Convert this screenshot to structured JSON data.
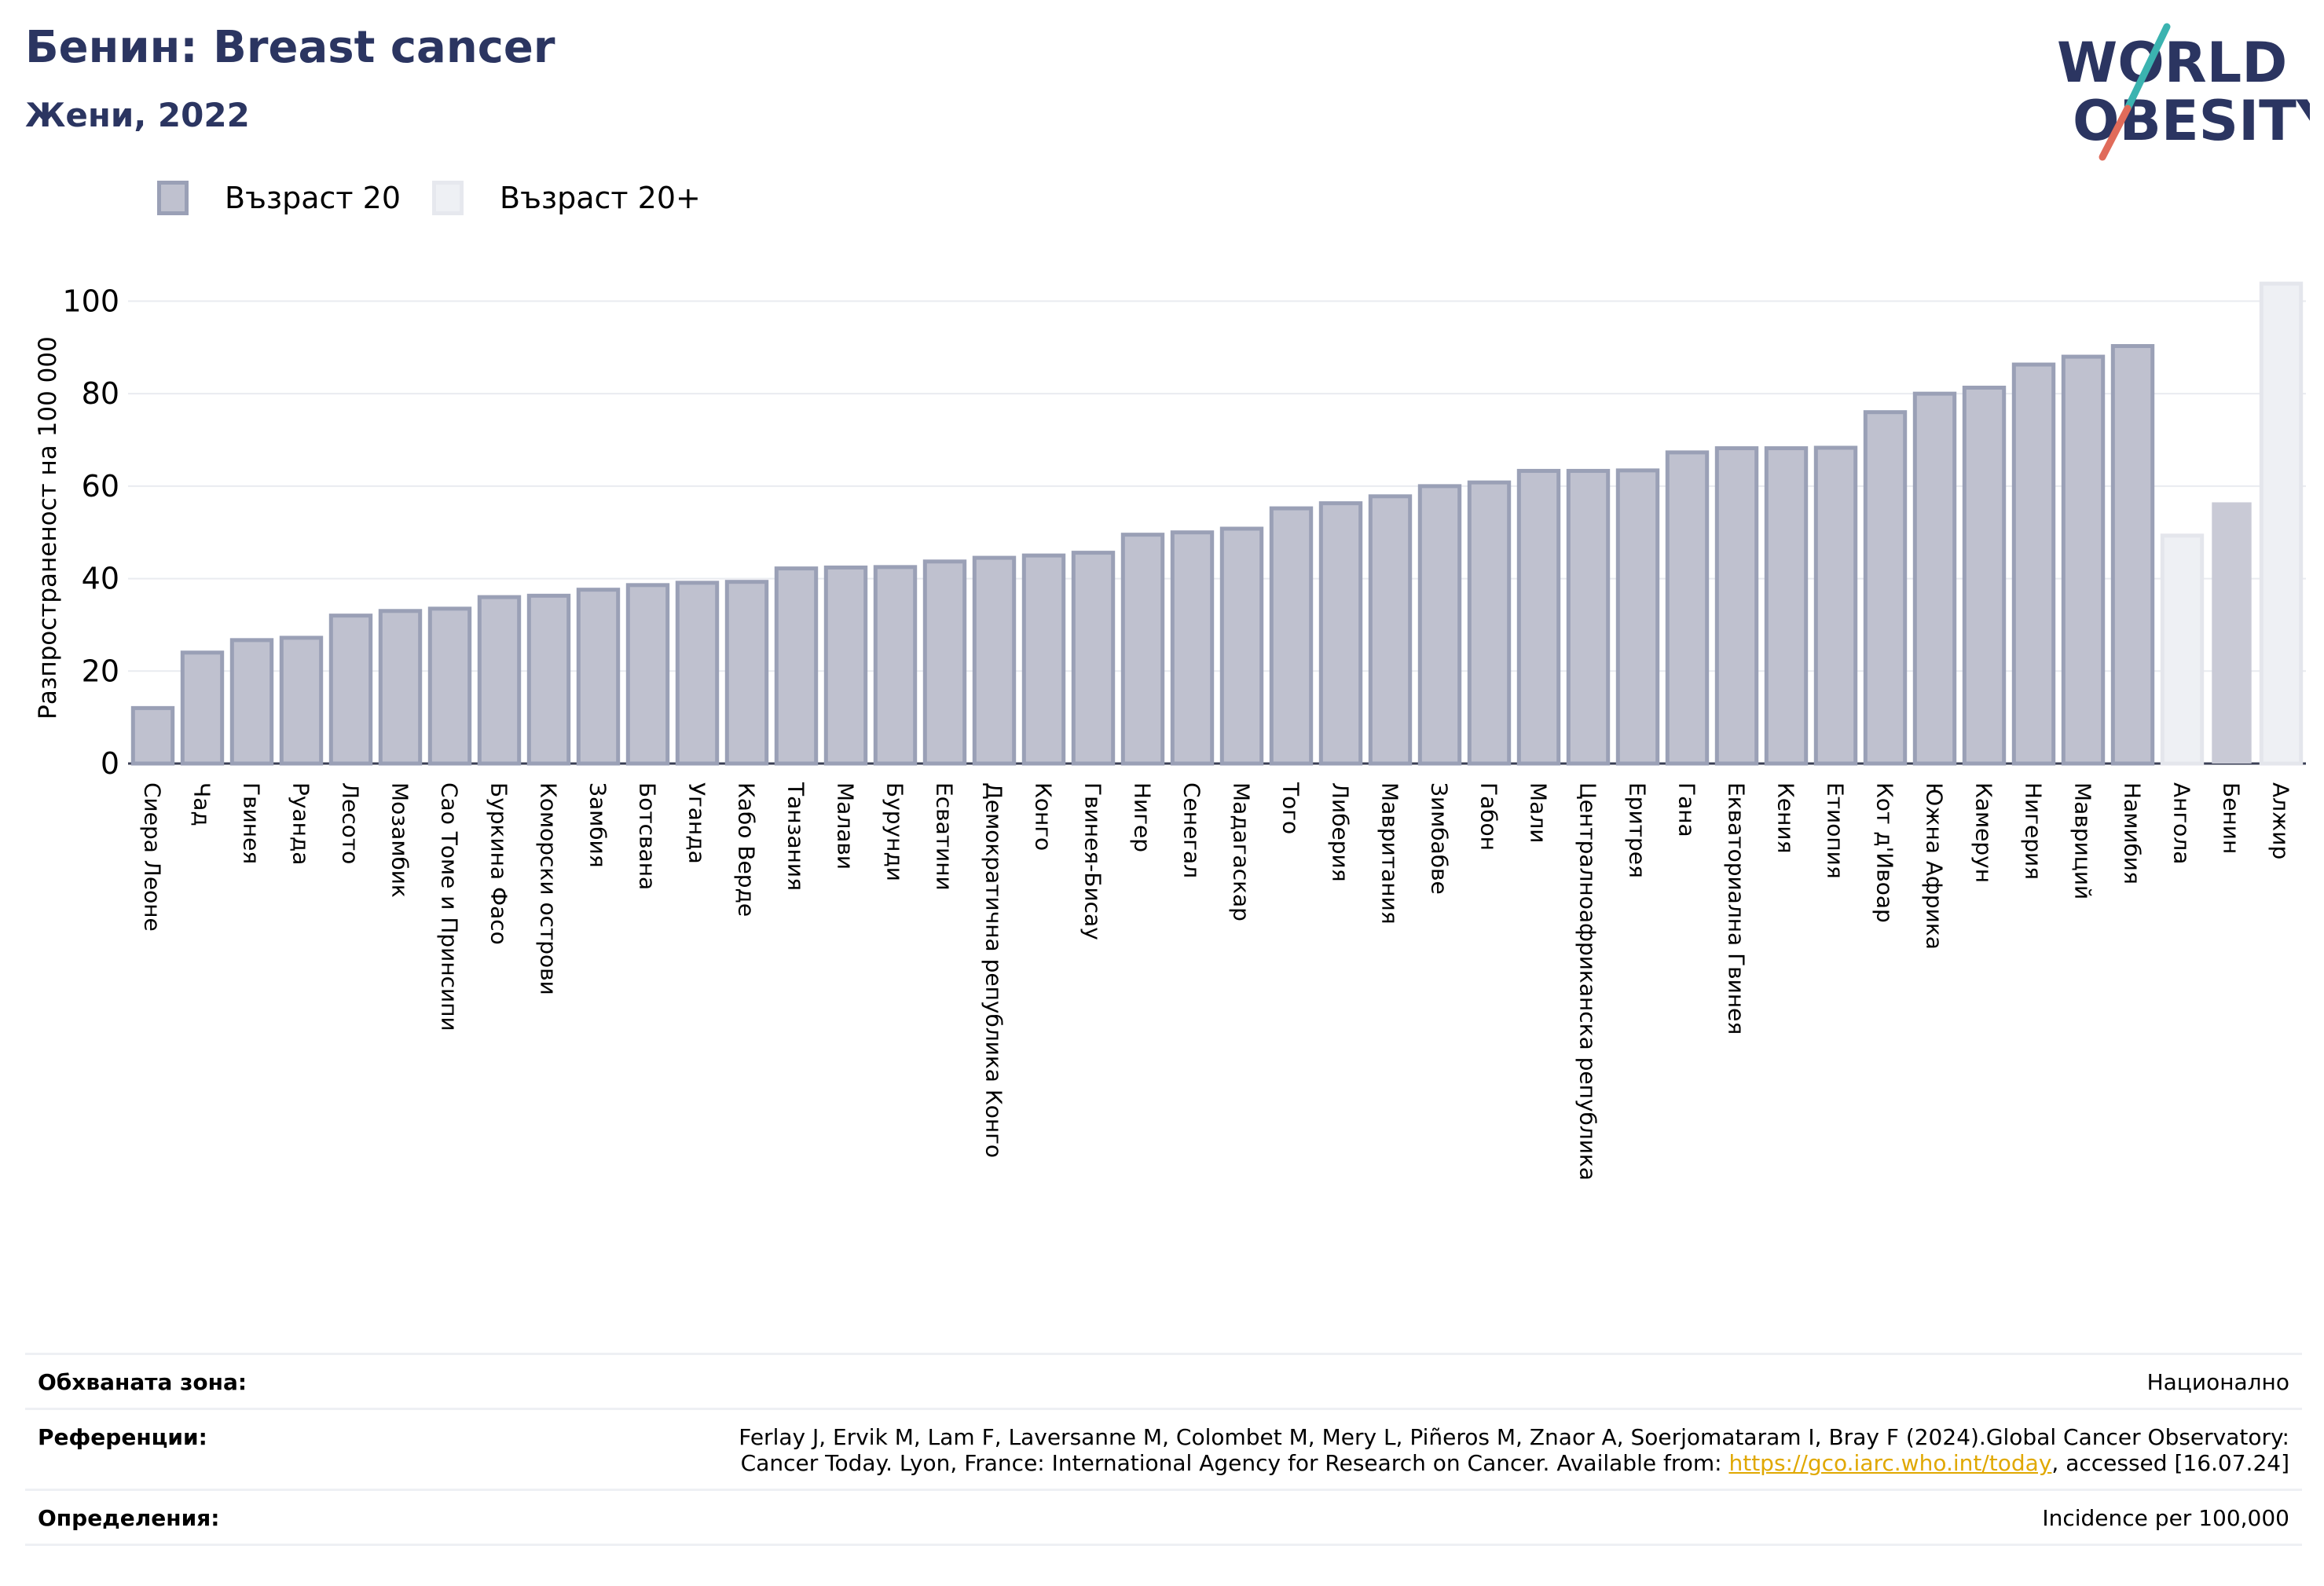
{
  "header": {
    "title": "Бенин: Breast cancer",
    "subtitle": "Жени, 2022"
  },
  "logo": {
    "line1": "WORLD",
    "line2": "OBESITY"
  },
  "colors": {
    "title": "#2b3561",
    "bar_primary_fill": "#bfc1cf",
    "bar_primary_stroke": "#9aa0b6",
    "bar_benin": "#c9cad6",
    "bar_secondary": "#eef0f4",
    "link": "#e0a800",
    "logo_teal": "#3bb3b0",
    "logo_coral": "#e06b5a"
  },
  "legend": {
    "items": [
      {
        "label": "Възраст 20"
      },
      {
        "label": "Възраст 20+"
      }
    ]
  },
  "chart_data": {
    "type": "bar",
    "ylabel": "Разпространеност  на 100 000",
    "ylim": [
      0,
      105
    ],
    "yticks": [
      0,
      20,
      40,
      60,
      80,
      100
    ],
    "grid": true,
    "legend_position": "top-left",
    "categories": [
      "Сиера Леоне",
      "Чад",
      "Гвинея",
      "Руанда",
      "Лесото",
      "Мозамбик",
      "Сао Томе и Принсипи",
      "Буркина Фасо",
      "Коморски острови",
      "Замбия",
      "Ботсвана",
      "Уганда",
      "Кабо Верде",
      "Танзания",
      "Малави",
      "Бурунди",
      "Есватини",
      "Демократична република Конго",
      "Конго",
      "Гвинея-Бисау",
      "Нигер",
      "Сенегал",
      "Мадагаскар",
      "Того",
      "Либерия",
      "Мавритания",
      "Зимбабве",
      "Габон",
      "Мали",
      "Централноафриканска република",
      "Еритрея",
      "Гана",
      "Екваториална Гвинея",
      "Кения",
      "Етиопия",
      "Кот д'Ивоар",
      "Южна Африка",
      "Камерун",
      "Нигерия",
      "Мавриций",
      "Намибия",
      "Ангола",
      "Бенин",
      "Алжир"
    ],
    "values": [
      12,
      24,
      26.7,
      27.2,
      32,
      33,
      33.5,
      36,
      36.3,
      37.6,
      38.6,
      39.1,
      39.3,
      42.2,
      42.4,
      42.5,
      43.7,
      44.5,
      45,
      45.6,
      49.5,
      50,
      50.8,
      55.2,
      56.3,
      57.8,
      60,
      60.8,
      63.3,
      63.3,
      63.4,
      67.3,
      68.2,
      68.2,
      68.3,
      76,
      80,
      81.3,
      86.3,
      88,
      90.3,
      49.3,
      56.5,
      103.8
    ],
    "series_type": [
      "Възраст 20",
      "Възраст 20",
      "Възраст 20",
      "Възраст 20",
      "Възраст 20",
      "Възраст 20",
      "Възраст 20",
      "Възраст 20",
      "Възраст 20",
      "Възраст 20",
      "Възраст 20",
      "Възраст 20",
      "Възраст 20",
      "Възраст 20",
      "Възраст 20",
      "Възраст 20",
      "Възраст 20",
      "Възраст 20",
      "Възраст 20",
      "Възраст 20",
      "Възраст 20",
      "Възраст 20",
      "Възраст 20",
      "Възраст 20",
      "Възраст 20",
      "Възраст 20",
      "Възраст 20",
      "Възраст 20",
      "Възраст 20",
      "Възраст 20",
      "Възраст 20",
      "Възраст 20",
      "Възраст 20",
      "Възраст 20",
      "Възраст 20",
      "Възраст 20",
      "Възраст 20",
      "Възраст 20",
      "Възраст 20",
      "Възраст 20",
      "Възраст 20",
      "Възраст 20+",
      "Възраст 20+",
      "Възраст 20+"
    ],
    "highlight": "Бенин"
  },
  "footer": {
    "coverage_label": "Обхваната зона:",
    "coverage_value": "Национално",
    "references_label": "Референции:",
    "references_line1": "Ferlay J, Ervik M, Lam F, Laversanne M, Colombet M, Mery L, Piñeros M, Znaor A, Soerjomataram I, Bray F (2024).Global Cancer Observatory:",
    "references_line2_pre": "Cancer Today. Lyon, France: International Agency for Research on Cancer. Available from: ",
    "references_link": "https://gco.iarc.who.int/today",
    "references_line2_post": ", accessed [16.07.24]",
    "definitions_label": "Определения:",
    "definitions_value": "Incidence per 100,000"
  }
}
